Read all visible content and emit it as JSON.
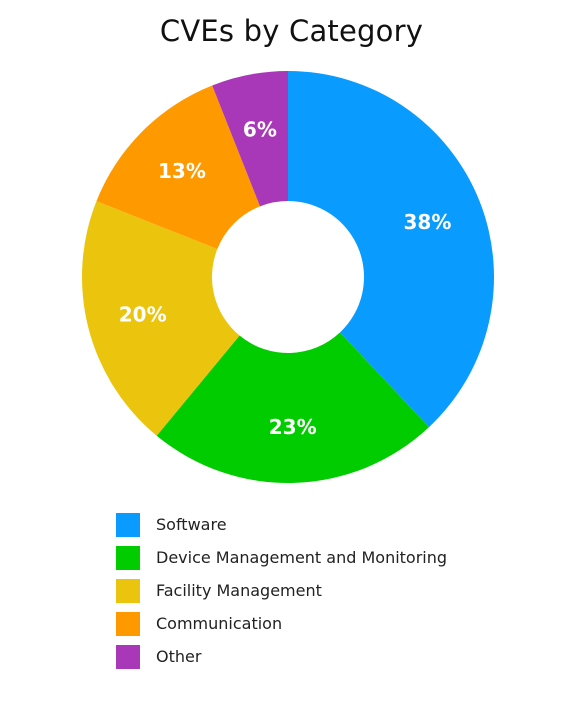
{
  "chart_data": {
    "type": "pie",
    "title": "CVEs by Category",
    "donut": true,
    "legend_position": "bottom",
    "categories": [
      "Software",
      "Device Management and Monitoring",
      "Facility Management",
      "Communication",
      "Other"
    ],
    "values": [
      38,
      23,
      20,
      13,
      6
    ],
    "value_labels": [
      "38%",
      "23%",
      "20%",
      "13%",
      "6%"
    ],
    "unit": "%",
    "colors": [
      "#0a9bff",
      "#00cc00",
      "#ebc40e",
      "#ff9900",
      "#a938b8"
    ]
  }
}
